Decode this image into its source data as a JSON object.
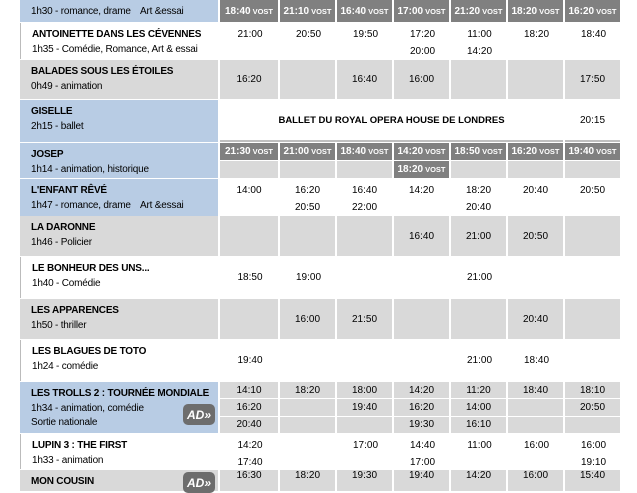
{
  "colors": {
    "film_highlight": "#b8cce4",
    "row_gray": "#d9d9d9",
    "vost_cell": "#808080"
  },
  "rows": [
    {
      "title": "",
      "info": "1h30 - romance, drame",
      "tag": "Art &essai",
      "bg": "blue",
      "cellbg": "white",
      "grid": true,
      "cells": [
        [
          {
            "time": "18:40",
            "label": "VOST"
          }
        ],
        [
          {
            "time": "21:10",
            "label": "VOST"
          }
        ],
        [
          {
            "time": "16:40",
            "label": "VOST"
          }
        ],
        [
          {
            "time": "17:00",
            "label": "VOST"
          }
        ],
        [
          {
            "time": "21:20",
            "label": "VOST"
          }
        ],
        [
          {
            "time": "18:20",
            "label": "VOST"
          }
        ],
        [
          {
            "time": "16:20",
            "label": "VOST"
          }
        ]
      ]
    },
    {
      "title": "ANTOINETTE DANS LES CÉVENNES",
      "info": "1h35 - Comédie, Romance, Art & essai",
      "bg": "white",
      "cellbg": "white",
      "cells": [
        [
          "21:00"
        ],
        [
          "20:50"
        ],
        [
          "19:50"
        ],
        [
          "17:20",
          "20:00"
        ],
        [
          "11:00",
          "14:20"
        ],
        [
          "18:20"
        ],
        [
          "18:40"
        ]
      ]
    },
    {
      "title": "BALADES SOUS LES ÉTOILES",
      "info": "0h49 - animation",
      "bg": "gray",
      "cellbg": "gray",
      "cells": [
        [
          "16:20"
        ],
        [],
        [
          "16:40"
        ],
        [
          "16:00"
        ],
        [],
        [],
        [
          "17:50"
        ]
      ]
    },
    {
      "title": "GISELLE",
      "info": "2h15 - ballet",
      "bg": "blue",
      "cellbg": "white",
      "banner": "BALLET DU ROYAL OPERA HOUSE DE LONDRES",
      "last": "20:15"
    },
    {
      "title": "JOSEP",
      "info": "1h14 - animation, historique",
      "bg": "blue",
      "cellbg": "gray",
      "grid": true,
      "subrows": 2,
      "cells": [
        [
          {
            "time": "21:30",
            "label": "VOST"
          }
        ],
        [
          {
            "time": "21:00",
            "label": "VOST"
          }
        ],
        [
          {
            "time": "18:40",
            "label": "VOST"
          }
        ],
        [
          {
            "time": "14:20",
            "label": "VOST"
          },
          {
            "time": "18:20",
            "label": "VOST"
          }
        ],
        [
          {
            "time": "18:50",
            "label": "VOST"
          }
        ],
        [
          {
            "time": "16:20",
            "label": "VOST"
          }
        ],
        [
          {
            "time": "19:40",
            "label": "VOST"
          }
        ]
      ]
    },
    {
      "title": "L'ENFANT RÊVÉ",
      "info": "1h47 - romance, drame",
      "tag": "Art &essai",
      "bg": "blue",
      "cellbg": "white",
      "cells": [
        [
          "14:00"
        ],
        [
          "16:20",
          "20:50"
        ],
        [
          "16:40",
          "22:00"
        ],
        [
          "14:20"
        ],
        [
          "18:20",
          "20:40"
        ],
        [
          "20:40"
        ],
        [
          "20:50"
        ]
      ]
    },
    {
      "title": "LA DARONNE",
      "info": "1h46 - Policier",
      "bg": "gray",
      "cellbg": "gray",
      "cells": [
        [],
        [],
        [],
        [
          "16:40"
        ],
        [
          "21:00"
        ],
        [
          "20:50"
        ],
        []
      ]
    },
    {
      "title": "LE BONHEUR DES UNS...",
      "info": "1h40 - Comédie",
      "bg": "white",
      "cellbg": "white",
      "cells": [
        [
          "18:50"
        ],
        [
          "19:00"
        ],
        [],
        [],
        [
          "21:00"
        ],
        [],
        []
      ]
    },
    {
      "title": "LES APPARENCES",
      "info": "1h50 - thriller",
      "bg": "gray",
      "cellbg": "gray",
      "cells": [
        [],
        [
          "16:00"
        ],
        [
          "21:50"
        ],
        [],
        [],
        [
          "20:40"
        ],
        []
      ]
    },
    {
      "title": "LES BLAGUES DE TOTO",
      "info": "1h24 - comédie",
      "bg": "white",
      "cellbg": "white",
      "cells": [
        [
          "19:40"
        ],
        [],
        [],
        [],
        [
          "21:00"
        ],
        [
          "18:40"
        ],
        []
      ]
    },
    {
      "title": "LES TROLLS 2 : TOURNÉE MONDIALE",
      "info": "1h34 - animation, comédie",
      "extra": "Sortie nationale",
      "ad": "AD",
      "bg": "blue",
      "cellbg": "gray",
      "grid": true,
      "subrows": 3,
      "cells": [
        [
          "14:10",
          "16:20",
          "20:40"
        ],
        [
          "18:20"
        ],
        [
          "18:00",
          "19:40"
        ],
        [
          "14:20",
          "16:20",
          "19:30"
        ],
        [
          "11:20",
          "14:00",
          "16:10"
        ],
        [
          "18:40"
        ],
        [
          "18:10",
          "20:50"
        ]
      ]
    },
    {
      "title": "LUPIN 3 : THE FIRST",
      "info": "1h33 - animation",
      "bg": "white",
      "cellbg": "white",
      "cells": [
        [
          "14:20",
          "17:40"
        ],
        [],
        [
          "17:00"
        ],
        [
          "14:40",
          "17:00"
        ],
        [
          "11:00"
        ],
        [
          "16:00"
        ],
        [
          "16:00",
          "19:10"
        ]
      ]
    },
    {
      "title": "MON COUSIN",
      "info": "",
      "ad": "AD",
      "bg": "gray",
      "cellbg": "gray",
      "cells": [
        [
          "16:30"
        ],
        [
          "18:20"
        ],
        [
          "19:30"
        ],
        [
          "19:40"
        ],
        [
          "14:20"
        ],
        [
          "16:00"
        ],
        [
          "15:40"
        ]
      ]
    }
  ]
}
